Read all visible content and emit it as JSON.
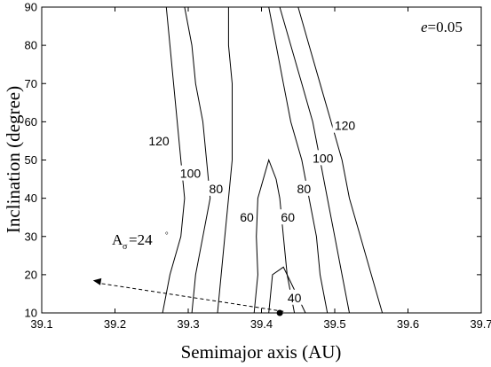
{
  "chart_data": {
    "type": "contour",
    "xlabel": "Semimajor axis (AU)",
    "ylabel": "Inclination (degree)",
    "xlim": [
      39.1,
      39.7
    ],
    "ylim": [
      10,
      90
    ],
    "xticks": [
      "39.1",
      "39.2",
      "39.3",
      "39.4",
      "39.5",
      "39.6",
      "39.7"
    ],
    "yticks": [
      "10",
      "20",
      "30",
      "40",
      "50",
      "60",
      "70",
      "80",
      "90"
    ],
    "annotation_e": {
      "symbol": "e",
      "eq": "=0.05"
    },
    "annotation_A": {
      "main": "A",
      "sub": "σ",
      "value": "=24",
      "sup": "°"
    },
    "arrow": {
      "from": [
        39.43,
        10.4
      ],
      "to": [
        39.17,
        18.5
      ]
    },
    "marker": {
      "x": 39.425,
      "y": 10
    },
    "contours": [
      {
        "level": "120",
        "points": [
          [
            39.265,
            10
          ],
          [
            39.275,
            20
          ],
          [
            39.29,
            30
          ],
          [
            39.295,
            40
          ],
          [
            39.29,
            50
          ],
          [
            39.285,
            60
          ],
          [
            39.28,
            70
          ],
          [
            39.275,
            80
          ],
          [
            39.27,
            90
          ]
        ],
        "label": {
          "text": "120",
          "x": 39.26,
          "y": 55
        }
      },
      {
        "level": "100",
        "points": [
          [
            39.305,
            10
          ],
          [
            39.31,
            20
          ],
          [
            39.32,
            30
          ],
          [
            39.33,
            40
          ],
          [
            39.325,
            50
          ],
          [
            39.32,
            60
          ],
          [
            39.31,
            70
          ],
          [
            39.305,
            80
          ],
          [
            39.295,
            90
          ]
        ],
        "label": {
          "text": "100",
          "x": 39.303,
          "y": 46.5
        }
      },
      {
        "level": "80",
        "points": [
          [
            39.34,
            10
          ],
          [
            39.345,
            20
          ],
          [
            39.35,
            30
          ],
          [
            39.355,
            40
          ],
          [
            39.36,
            50
          ],
          [
            39.36,
            60
          ],
          [
            39.36,
            70
          ],
          [
            39.355,
            80
          ],
          [
            39.355,
            90
          ]
        ],
        "label": {
          "text": "80",
          "x": 39.338,
          "y": 42.5
        }
      },
      {
        "level": "60",
        "points": [
          [
            39.39,
            10
          ],
          [
            39.395,
            20
          ],
          [
            39.393,
            30
          ],
          [
            39.395,
            40
          ],
          [
            39.41,
            50
          ],
          [
            39.42,
            45
          ],
          [
            39.425,
            40
          ],
          [
            39.43,
            30
          ],
          [
            39.435,
            20
          ],
          [
            39.445,
            10
          ]
        ],
        "labels": [
          {
            "text": "60",
            "x": 39.38,
            "y": 35
          },
          {
            "text": "60",
            "x": 39.436,
            "y": 35
          }
        ]
      },
      {
        "level": "40",
        "points": [
          [
            39.41,
            10
          ],
          [
            39.415,
            20
          ],
          [
            39.43,
            22
          ],
          [
            39.44,
            18
          ],
          [
            39.455,
            12
          ],
          [
            39.46,
            10
          ]
        ],
        "label": {
          "text": "40",
          "x": 39.445,
          "y": 14
        }
      },
      {
        "level": "80",
        "points": [
          [
            39.49,
            10
          ],
          [
            39.48,
            20
          ],
          [
            39.475,
            30
          ],
          [
            39.465,
            40
          ],
          [
            39.455,
            50
          ],
          [
            39.44,
            60
          ],
          [
            39.43,
            70
          ],
          [
            39.42,
            80
          ],
          [
            39.41,
            90
          ]
        ],
        "label": {
          "text": "80",
          "x": 39.458,
          "y": 42.5
        }
      },
      {
        "level": "100",
        "points": [
          [
            39.52,
            10
          ],
          [
            39.51,
            20
          ],
          [
            39.5,
            30
          ],
          [
            39.49,
            40
          ],
          [
            39.48,
            50
          ],
          [
            39.47,
            60
          ],
          [
            39.455,
            70
          ],
          [
            39.44,
            80
          ],
          [
            39.425,
            90
          ]
        ],
        "label": {
          "text": "100",
          "x": 39.484,
          "y": 50.5
        }
      },
      {
        "level": "120",
        "points": [
          [
            39.565,
            10
          ],
          [
            39.55,
            20
          ],
          [
            39.535,
            30
          ],
          [
            39.52,
            40
          ],
          [
            39.51,
            50
          ],
          [
            39.495,
            60
          ],
          [
            39.48,
            70
          ],
          [
            39.465,
            80
          ],
          [
            39.45,
            90
          ]
        ],
        "label": {
          "text": "120",
          "x": 39.514,
          "y": 59
        }
      }
    ]
  }
}
